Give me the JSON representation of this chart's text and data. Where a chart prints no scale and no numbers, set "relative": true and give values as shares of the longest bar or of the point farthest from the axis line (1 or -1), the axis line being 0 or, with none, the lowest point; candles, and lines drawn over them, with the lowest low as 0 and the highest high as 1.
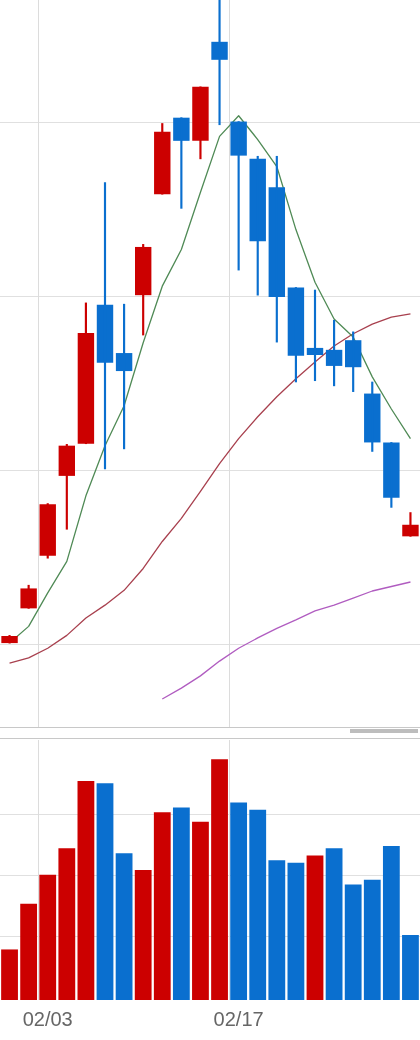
{
  "chart_data": [
    {
      "type": "candlestick",
      "relative": true,
      "grid": true,
      "tick_labels": false,
      "marker": "none",
      "categories": [
        null,
        null,
        null,
        null,
        null,
        null,
        null,
        null,
        null,
        null,
        null,
        null,
        null,
        null,
        null,
        null,
        null,
        null,
        null,
        null,
        null,
        null
      ],
      "ohlc": [
        [
          0,
          0.012,
          0,
          0.011
        ],
        [
          0.054,
          0.09,
          0.054,
          0.085
        ],
        [
          0.136,
          0.217,
          0.132,
          0.216
        ],
        [
          0.26,
          0.309,
          0.177,
          0.307
        ],
        [
          0.31,
          0.529,
          0.31,
          0.482
        ],
        [
          0.526,
          0.716,
          0.271,
          0.436
        ],
        [
          0.451,
          0.527,
          0.302,
          0.423
        ],
        [
          0.541,
          0.62,
          0.479,
          0.616
        ],
        [
          0.698,
          0.808,
          0.698,
          0.795
        ],
        [
          0.817,
          0.817,
          0.676,
          0.781
        ],
        [
          0.781,
          0.865,
          0.753,
          0.865
        ],
        [
          0.935,
          1,
          0.806,
          0.907
        ],
        [
          0.811,
          0.811,
          0.58,
          0.758
        ],
        [
          0.753,
          0.757,
          0.541,
          0.625
        ],
        [
          0.709,
          0.757,
          0.468,
          0.538
        ],
        [
          0.553,
          0.553,
          0.406,
          0.447
        ],
        [
          0.459,
          0.549,
          0.408,
          0.448
        ],
        [
          0.456,
          0.502,
          0.4,
          0.431
        ],
        [
          0.471,
          0.484,
          0.391,
          0.429
        ],
        [
          0.388,
          0.406,
          0.298,
          0.312
        ],
        [
          0.312,
          0.312,
          0.211,
          0.226
        ],
        [
          0.166,
          0.203,
          0.166,
          0.184
        ]
      ],
      "colors": [
        "#cc0000",
        "#cc0000",
        "#cc0000",
        "#cc0000",
        "#cc0000",
        "#0a6fcf",
        "#0a6fcf",
        "#cc0000",
        "#cc0000",
        "#0a6fcf",
        "#cc0000",
        "#0a6fcf",
        "#0a6fcf",
        "#0a6fcf",
        "#0a6fcf",
        "#0a6fcf",
        "#0a6fcf",
        "#0a6fcf",
        "#0a6fcf",
        "#0a6fcf",
        "#0a6fcf",
        "#cc0000"
      ],
      "series": [
        {
          "type": "line",
          "color": "#4f8a55",
          "values": [
            0,
            0.026,
            0.078,
            0.127,
            0.229,
            0.307,
            0.369,
            0.467,
            0.555,
            0.612,
            0.701,
            0.788,
            0.82,
            0.783,
            0.741,
            0.643,
            0.561,
            0.504,
            0.476,
            0.414,
            0.364,
            0.318
          ]
        },
        {
          "type": "line",
          "color": "#a8404e",
          "values": [
            -0.031,
            -0.023,
            -0.008,
            0.012,
            0.039,
            0.059,
            0.082,
            0.116,
            0.158,
            0.194,
            0.236,
            0.279,
            0.318,
            0.352,
            0.383,
            0.411,
            0.437,
            0.462,
            0.481,
            0.496,
            0.507,
            0.512
          ]
        },
        {
          "type": "line",
          "color": "#b05cc0",
          "values": [
            null,
            null,
            null,
            null,
            null,
            null,
            null,
            null,
            -0.087,
            -0.07,
            -0.051,
            -0.028,
            -0.008,
            0.008,
            0.023,
            0.036,
            0.05,
            0.059,
            0.07,
            0.081,
            0.088,
            0.095
          ]
        }
      ]
    },
    {
      "type": "bar",
      "relative": true,
      "grid": true,
      "tick_labels": "x",
      "categories": [
        null,
        null,
        "02/03",
        null,
        null,
        null,
        null,
        null,
        null,
        null,
        null,
        null,
        "02/17",
        null,
        null,
        null,
        null,
        null,
        null,
        null,
        null,
        null
      ],
      "values": [
        0.21,
        0.4,
        0.52,
        0.63,
        0.91,
        0.9,
        0.61,
        0.54,
        0.78,
        0.8,
        0.74,
        1,
        0.82,
        0.79,
        0.58,
        0.57,
        0.6,
        0.63,
        0.48,
        0.5,
        0.64,
        0.27
      ],
      "colors": [
        "#cc0000",
        "#cc0000",
        "#cc0000",
        "#cc0000",
        "#cc0000",
        "#0a6fcf",
        "#0a6fcf",
        "#cc0000",
        "#cc0000",
        "#0a6fcf",
        "#cc0000",
        "#cc0000",
        "#0a6fcf",
        "#0a6fcf",
        "#0a6fcf",
        "#0a6fcf",
        "#cc0000",
        "#0a6fcf",
        "#0a6fcf",
        "#0a6fcf",
        "#0a6fcf",
        "#0a6fcf"
      ]
    }
  ]
}
